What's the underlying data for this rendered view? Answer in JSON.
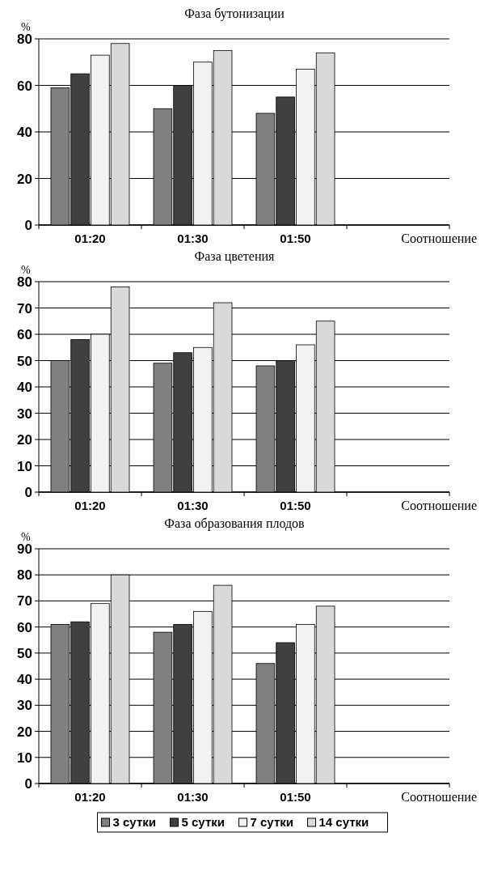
{
  "chart_data": [
    {
      "type": "bar",
      "title": "Фаза бутонизации",
      "ylabel": "%",
      "xlabel": "Соотношение",
      "categories": [
        "01:20",
        "01:30",
        "01:50",
        null
      ],
      "ylim": [
        0,
        80
      ],
      "yticks": [
        0,
        20,
        40,
        60,
        80
      ],
      "grid": "y",
      "legend": false,
      "series": [
        {
          "color": "#808080",
          "values": [
            59,
            50,
            48,
            null
          ]
        },
        {
          "color": "#404040",
          "values": [
            65,
            60,
            55,
            null
          ]
        },
        {
          "color": "#f2f2f2",
          "values": [
            73,
            70,
            67,
            null
          ]
        },
        {
          "color": "#d9d9d9",
          "values": [
            78,
            75,
            74,
            null
          ]
        }
      ]
    },
    {
      "type": "bar",
      "title": "Фаза цветения",
      "ylabel": "%",
      "xlabel": "Соотношение",
      "categories": [
        "01:20",
        "01:30",
        "01:50",
        null
      ],
      "ylim": [
        0,
        80
      ],
      "yticks": [
        0,
        10,
        20,
        30,
        40,
        50,
        60,
        70,
        80
      ],
      "grid": "y",
      "legend": false,
      "series": [
        {
          "color": "#808080",
          "values": [
            50,
            49,
            48,
            null
          ]
        },
        {
          "color": "#404040",
          "values": [
            58,
            53,
            50,
            null
          ]
        },
        {
          "color": "#f2f2f2",
          "values": [
            60,
            55,
            56,
            null
          ]
        },
        {
          "color": "#d9d9d9",
          "values": [
            78,
            72,
            65,
            null
          ]
        }
      ]
    },
    {
      "type": "bar",
      "title": "Фаза образования плодов",
      "ylabel": "%",
      "xlabel": "Соотношение",
      "categories": [
        "01:20",
        "01:30",
        "01:50",
        null
      ],
      "ylim": [
        0,
        90
      ],
      "yticks": [
        0,
        10,
        20,
        30,
        40,
        50,
        60,
        70,
        80,
        90
      ],
      "grid": "y",
      "legend": "bottom",
      "series": [
        {
          "name": "3 сутки",
          "color": "#808080",
          "values": [
            61,
            58,
            46,
            null
          ]
        },
        {
          "name": "5 сутки",
          "color": "#404040",
          "values": [
            62,
            61,
            54,
            null
          ]
        },
        {
          "name": "7 сутки",
          "color": "#f2f2f2",
          "values": [
            69,
            66,
            61,
            null
          ]
        },
        {
          "name": "14 сутки",
          "color": "#d9d9d9",
          "values": [
            80,
            76,
            68,
            null
          ]
        }
      ]
    }
  ]
}
